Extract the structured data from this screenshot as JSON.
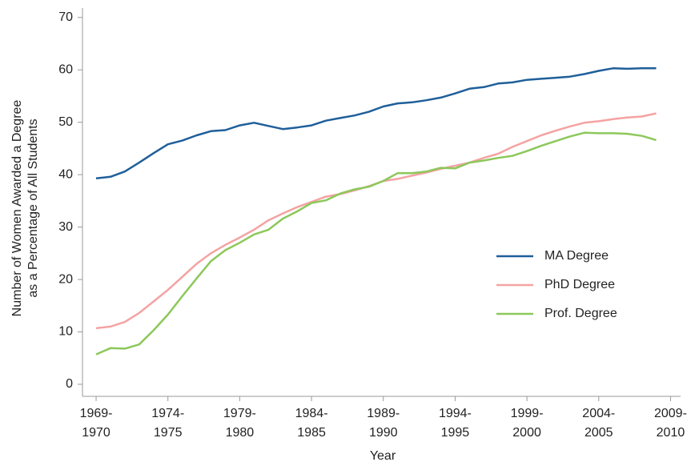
{
  "chart_data": {
    "type": "line",
    "ylabel": [
      "Number of Women Awarded a Degree",
      "as a Percentage of All Students"
    ],
    "xlabel": "Year",
    "x": [
      1969,
      1970,
      1971,
      1972,
      1973,
      1974,
      1975,
      1976,
      1977,
      1978,
      1979,
      1980,
      1981,
      1982,
      1983,
      1984,
      1985,
      1986,
      1987,
      1988,
      1989,
      1990,
      1991,
      1992,
      1993,
      1994,
      1995,
      1996,
      1997,
      1998,
      1999,
      2000,
      2001,
      2002,
      2003,
      2004,
      2005,
      2006,
      2007,
      2008
    ],
    "series": [
      {
        "name": "MA Degree",
        "color": "#1f5f9a",
        "values": [
          39.3,
          39.6,
          40.6,
          42.3,
          44.1,
          45.8,
          46.5,
          47.5,
          48.3,
          48.5,
          49.4,
          49.9,
          49.3,
          48.7,
          49.0,
          49.4,
          50.3,
          50.8,
          51.3,
          52.0,
          53.0,
          53.6,
          53.8,
          54.2,
          54.7,
          55.5,
          56.4,
          56.7,
          57.4,
          57.6,
          58.1,
          58.3,
          58.5,
          58.7,
          59.2,
          59.8,
          60.3,
          60.2,
          60.3,
          60.3
        ]
      },
      {
        "name": "PhD Degree",
        "color": "#f4a3a3",
        "values": [
          10.7,
          11.0,
          11.9,
          13.6,
          15.8,
          18.0,
          20.5,
          23.0,
          25.0,
          26.6,
          28.0,
          29.5,
          31.3,
          32.6,
          33.8,
          34.8,
          35.8,
          36.3,
          37.0,
          37.8,
          38.8,
          39.2,
          39.8,
          40.4,
          41.1,
          41.7,
          42.3,
          43.2,
          44.0,
          45.3,
          46.4,
          47.5,
          48.4,
          49.2,
          49.9,
          50.2,
          50.6,
          50.9,
          51.1,
          51.7
        ]
      },
      {
        "name": "Prof. Degree",
        "color": "#8cc85a",
        "values": [
          5.7,
          6.9,
          6.8,
          7.6,
          10.3,
          13.3,
          16.8,
          20.2,
          23.5,
          25.6,
          27.0,
          28.6,
          29.5,
          31.6,
          33.0,
          34.6,
          35.1,
          36.4,
          37.2,
          37.7,
          38.8,
          40.3,
          40.3,
          40.6,
          41.3,
          41.2,
          42.3,
          42.7,
          43.2,
          43.6,
          44.5,
          45.5,
          46.4,
          47.3,
          48.0,
          47.9,
          47.9,
          47.8,
          47.4,
          46.6
        ]
      }
    ],
    "xlim": [
      1968.05,
      2009.7
    ],
    "xticks": [
      {
        "value": 1969,
        "label": "1969-1970"
      },
      {
        "value": 1974,
        "label": "1974-1975"
      },
      {
        "value": 1979,
        "label": "1979-1980"
      },
      {
        "value": 1984,
        "label": "1984-1985"
      },
      {
        "value": 1989,
        "label": "1989-1990"
      },
      {
        "value": 1994,
        "label": "1994-1995"
      },
      {
        "value": 1999,
        "label": "1999-2000"
      },
      {
        "value": 2004,
        "label": "2004-2005"
      },
      {
        "value": 2009,
        "label": "2009-2010"
      }
    ],
    "ylim": [
      -2.3,
      71.8
    ],
    "yticks": [
      0,
      10,
      20,
      30,
      40,
      50,
      60,
      70
    ],
    "grid": false,
    "legend": "right"
  }
}
